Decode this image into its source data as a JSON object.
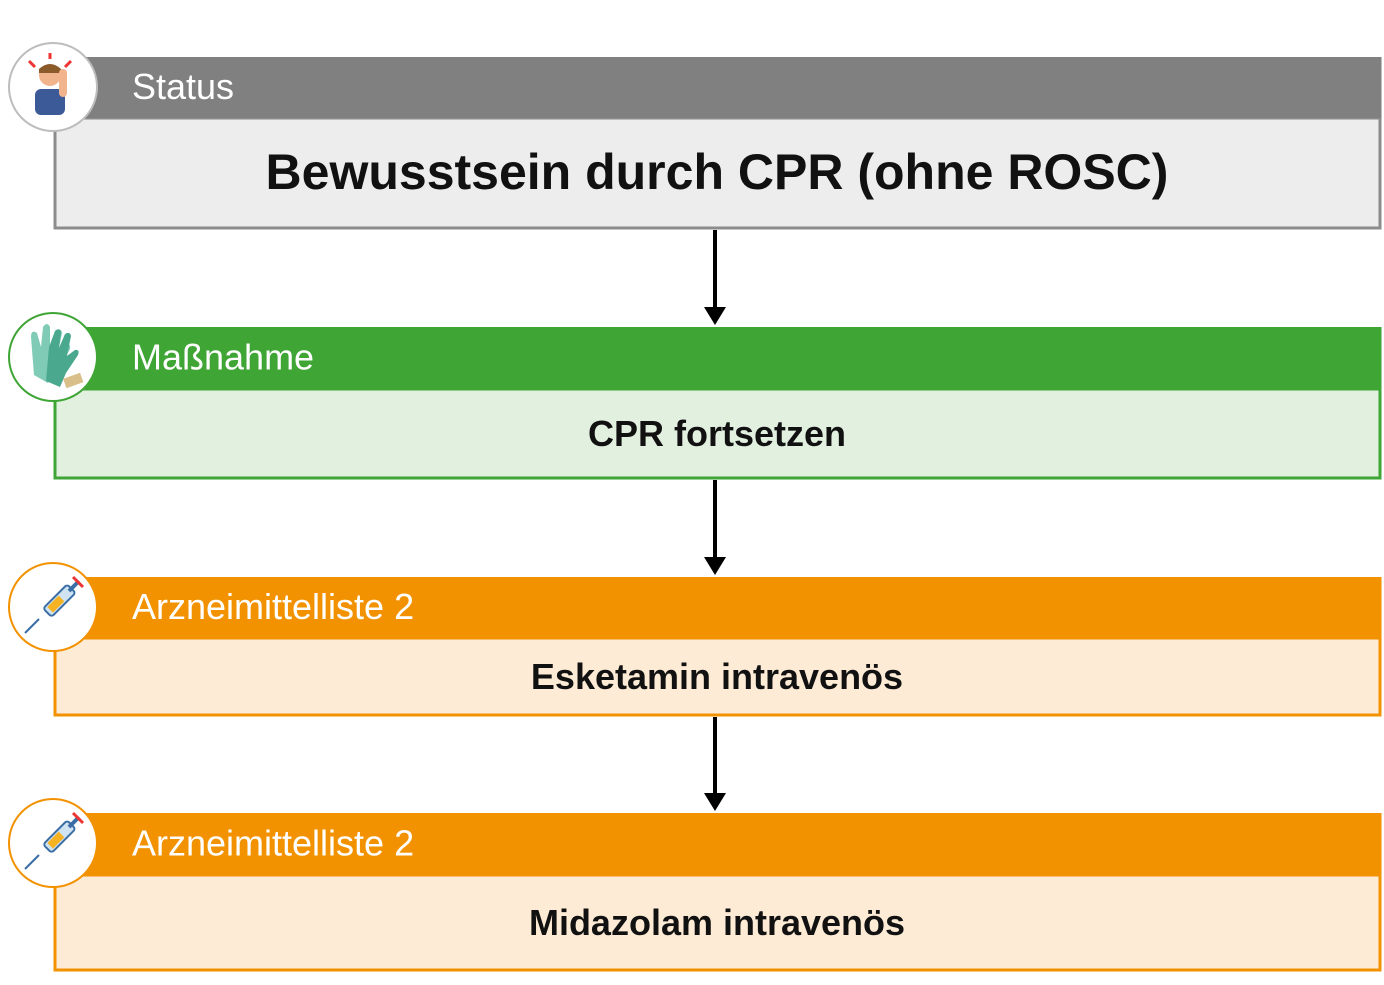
{
  "steps": [
    {
      "header": "Status",
      "body": "Bewusstsein durch CPR (ohne ROSC)"
    },
    {
      "header": "Maßnahme",
      "body": "CPR fortsetzen"
    },
    {
      "header": "Arzneimittelliste 2",
      "body": "Esketamin intravenös"
    },
    {
      "header": "Arzneimittelliste 2",
      "body": "Midazolam intravenös"
    }
  ]
}
